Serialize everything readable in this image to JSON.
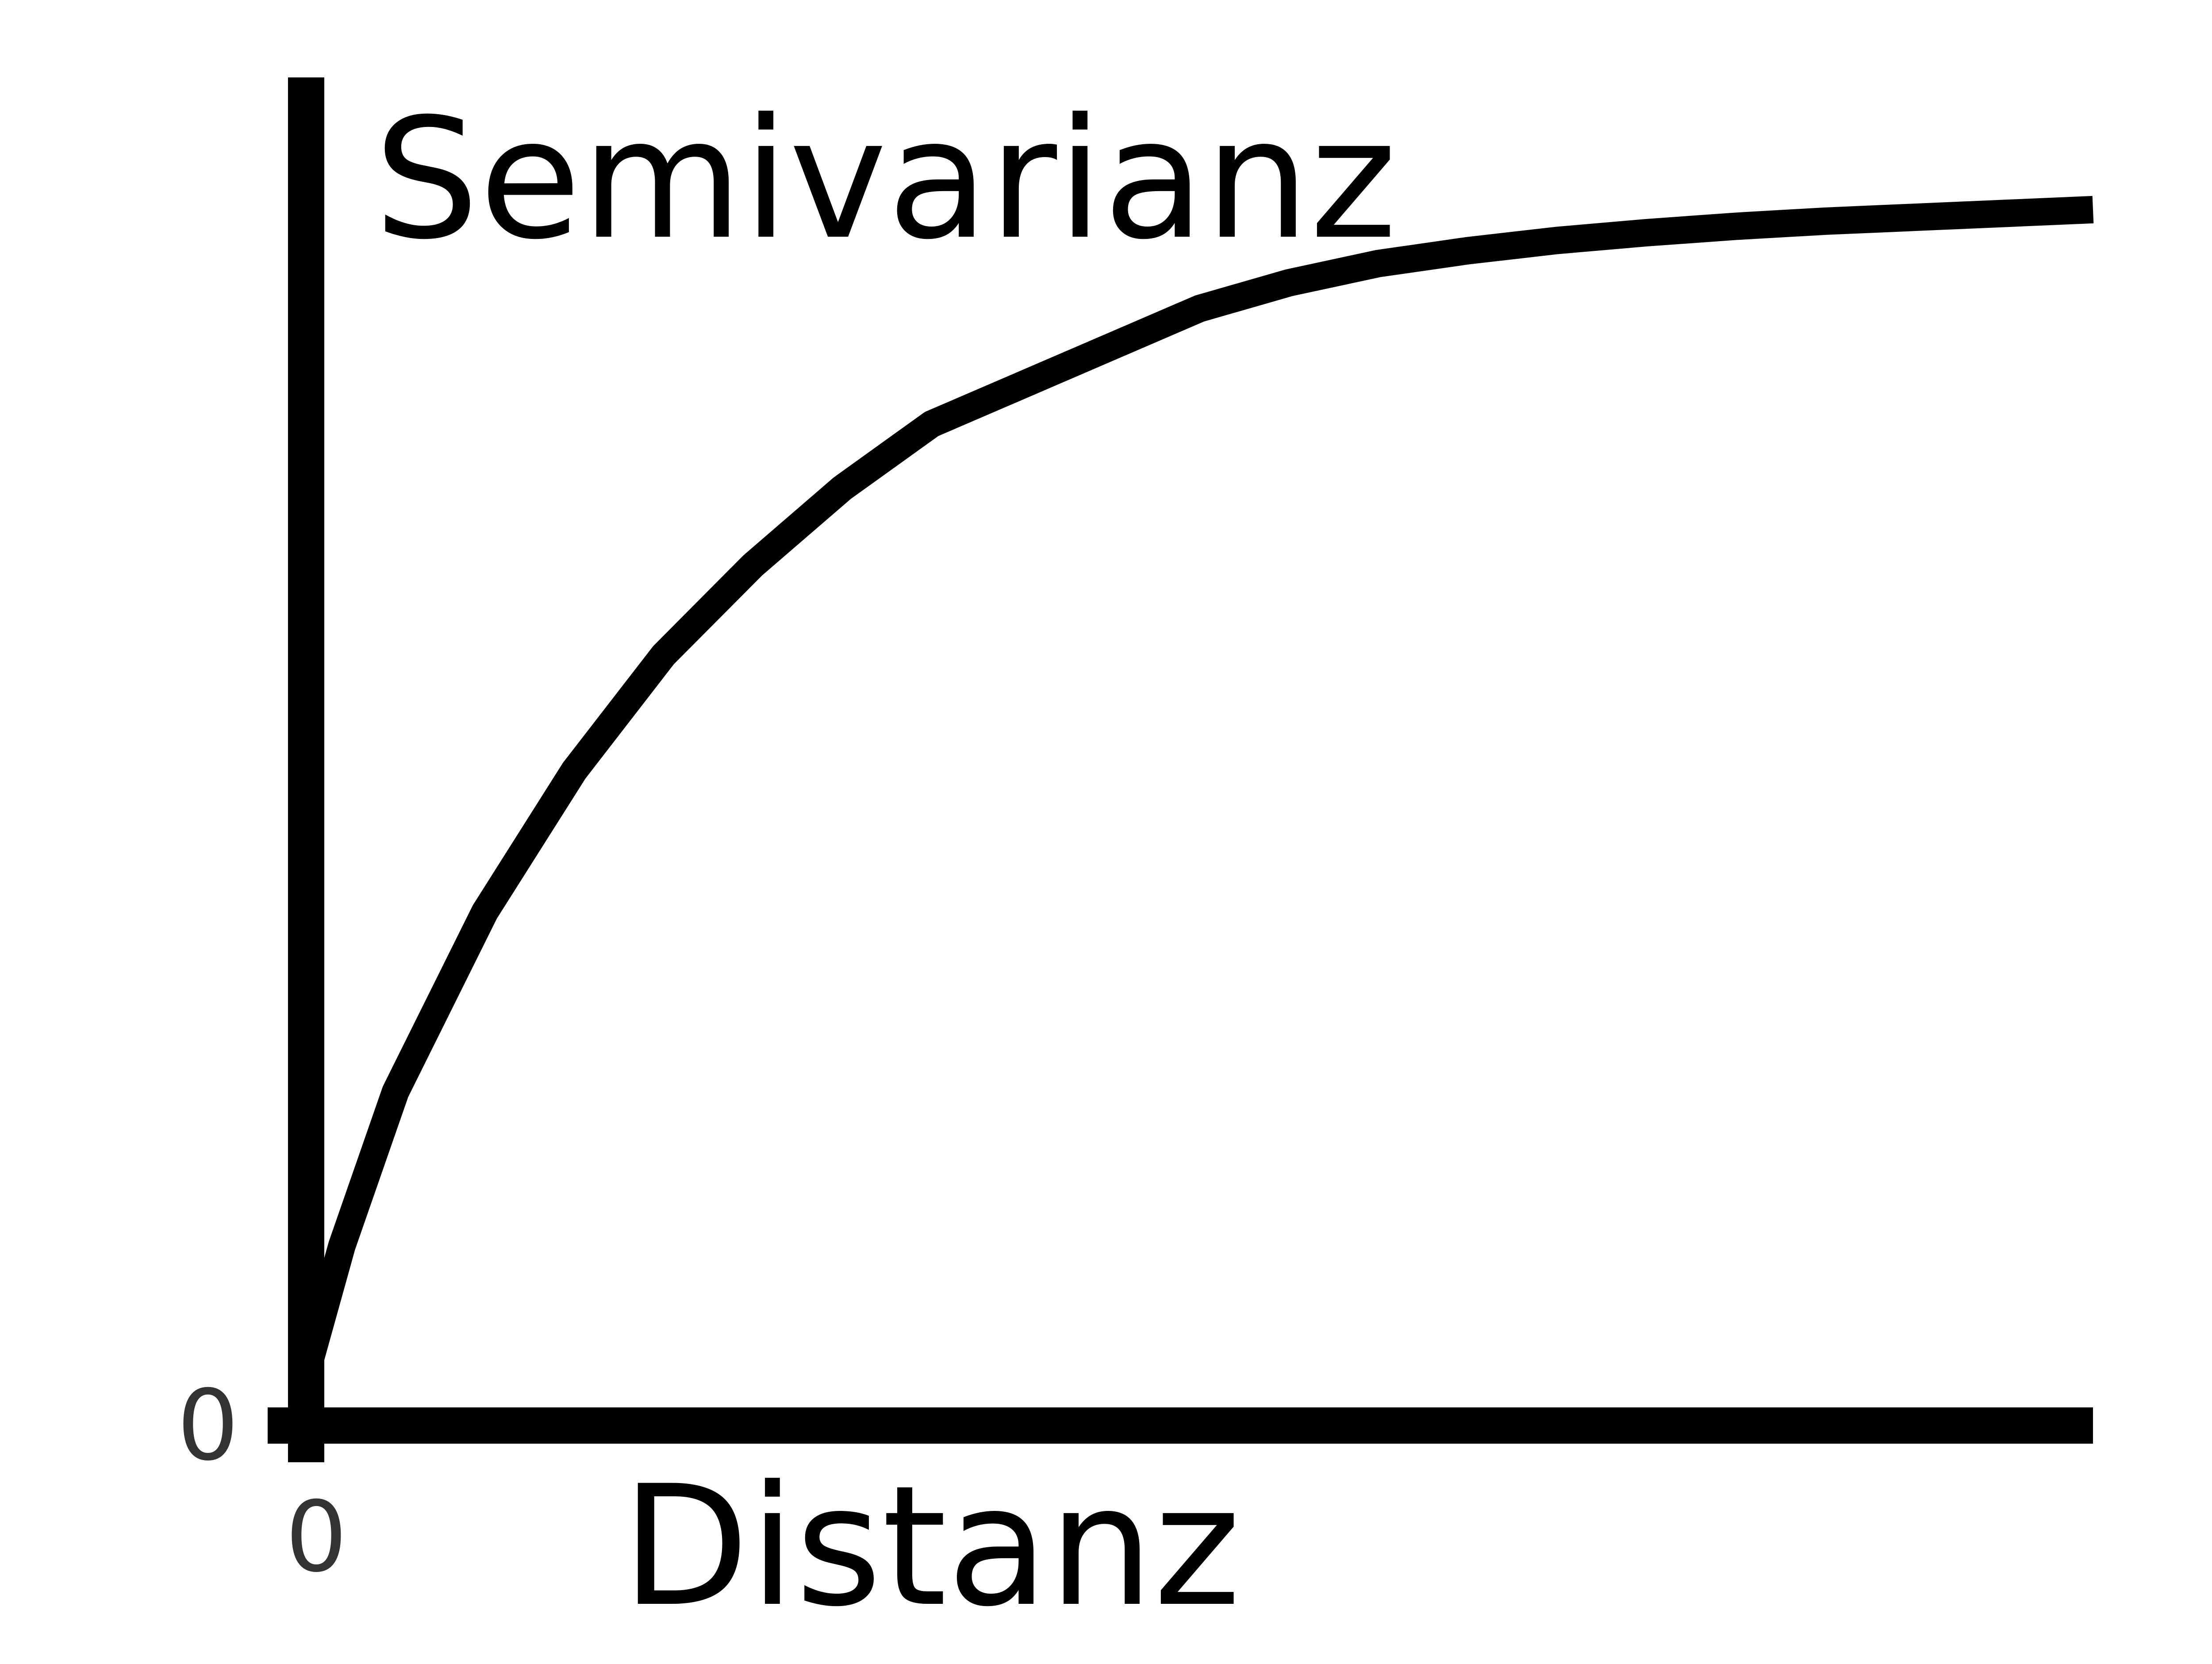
{
  "chart_data": {
    "type": "line",
    "title": "",
    "xlabel": "Distanz",
    "ylabel": "Semivarianz",
    "x_ticks": [
      "0"
    ],
    "y_ticks": [
      "0"
    ],
    "xlim": [
      0,
      100
    ],
    "ylim": [
      0,
      100
    ],
    "grid": false,
    "legend": "none",
    "series": [
      {
        "x": [
          0,
          2,
          5,
          10,
          15,
          20,
          25,
          30,
          35,
          40,
          45,
          50,
          55,
          60,
          65,
          70,
          75,
          80,
          85,
          90,
          95,
          100
        ],
        "y": [
          4,
          14,
          26,
          40,
          51,
          60,
          67,
          73,
          78,
          81,
          84,
          87,
          89,
          90.5,
          91.5,
          92.3,
          92.9,
          93.4,
          93.8,
          94.1,
          94.4,
          94.7
        ]
      }
    ],
    "colors": {
      "line": "#000000",
      "axis": "#000000",
      "background": "#ffffff"
    }
  }
}
